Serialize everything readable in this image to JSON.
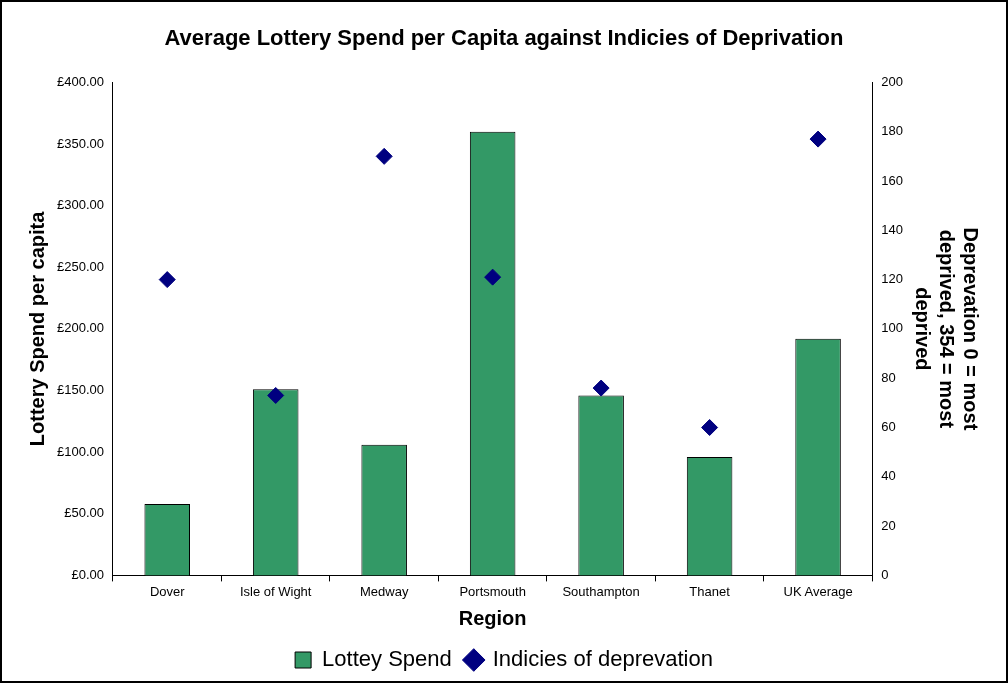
{
  "chart_data": {
    "type": "bar",
    "title": "Average Lottery Spend per Capita against Indicies of Deprivation",
    "xlabel": "Region",
    "ylabel": "Lottery Spend per capita",
    "y2label": "Deprevation 0 = most deprived, 354 = most deprived",
    "categories": [
      "Dover",
      "Isle of Wight",
      "Medway",
      "Portsmouth",
      "Southampton",
      "Thanet",
      "UK Average"
    ],
    "series": [
      {
        "name": "Lottey Spend",
        "color": "#339966",
        "values": [
          58,
          151,
          106,
          360,
          146,
          96,
          192
        ]
      },
      {
        "name": "Indicies of deprevation",
        "type": "scatter",
        "axis": "y2",
        "color": "#000080",
        "x": [
          "Dover",
          "Isle of Wight",
          "Medway",
          "Portsmouth",
          "Southampton",
          "Thanet",
          "UK Average"
        ],
        "values": [
          120,
          73,
          170,
          121,
          76,
          60,
          177
        ]
      }
    ],
    "ylim": [
      0,
      400
    ],
    "yticks": [
      {
        "value": 0,
        "label": "£0.00"
      },
      {
        "value": 50,
        "label": "£50.00"
      },
      {
        "value": 100,
        "label": "£100.00"
      },
      {
        "value": 150,
        "label": "£150.00"
      },
      {
        "value": 200,
        "label": "£200.00"
      },
      {
        "value": 250,
        "label": "£250.00"
      },
      {
        "value": 300,
        "label": "£300.00"
      },
      {
        "value": 350,
        "label": "£350.00"
      },
      {
        "value": 400,
        "label": "£400.00"
      }
    ],
    "y2lim": [
      0,
      200
    ],
    "y2ticks": [
      0,
      20,
      40,
      60,
      80,
      100,
      120,
      140,
      160,
      180,
      200
    ],
    "grid": false,
    "legend": "bottom",
    "marker": "diamond"
  }
}
